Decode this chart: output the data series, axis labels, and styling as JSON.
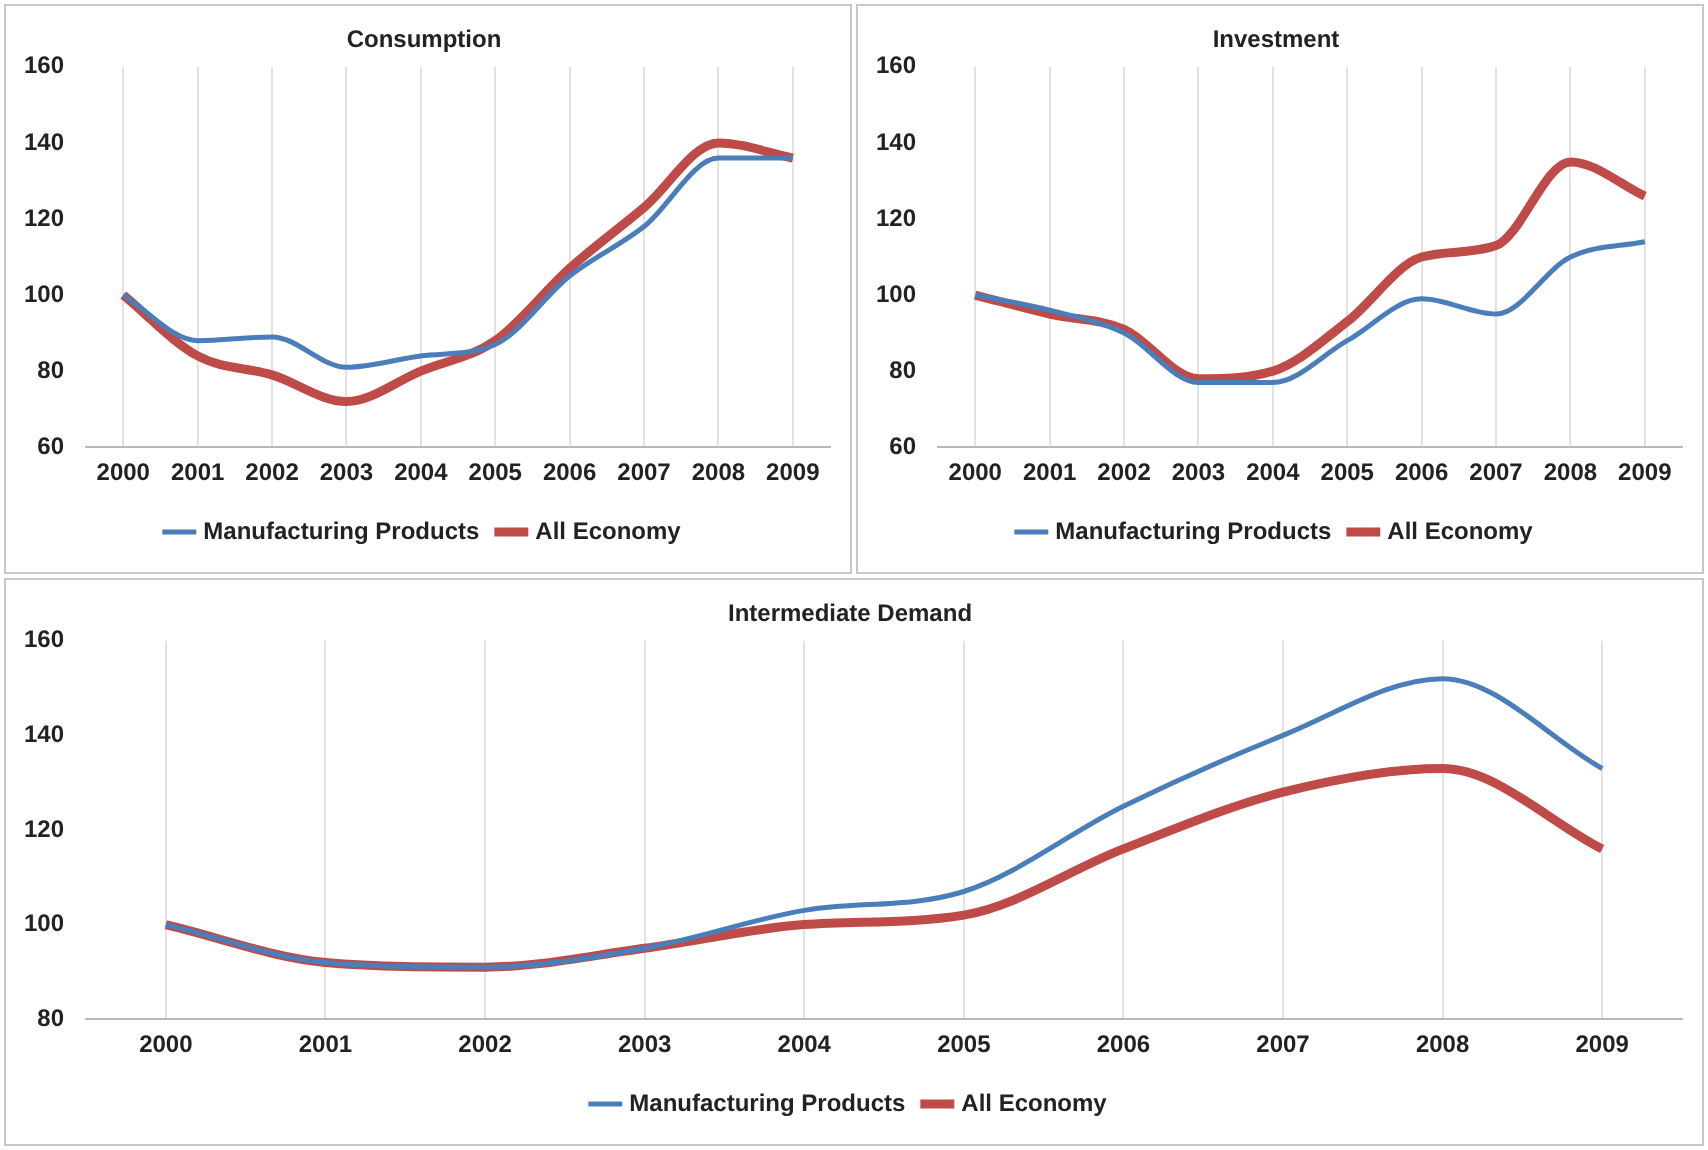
{
  "chart_data": [
    {
      "type": "line",
      "title": "Consumption",
      "categories": [
        "2000",
        "2001",
        "2002",
        "2003",
        "2004",
        "2005",
        "2006",
        "2007",
        "2008",
        "2009"
      ],
      "ylim": [
        60,
        160
      ],
      "yticks": [
        60,
        80,
        100,
        120,
        140,
        160
      ],
      "grid": "x",
      "legend": "bottom",
      "marker": "none",
      "series": [
        {
          "name": "Manufacturing Products",
          "color": "#4a7ebb",
          "values": [
            100,
            88,
            89,
            81,
            84,
            87,
            105,
            118,
            136,
            136
          ]
        },
        {
          "name": "All Economy",
          "color": "#be4b48",
          "values": [
            100,
            84,
            79,
            72,
            80,
            88,
            107,
            123,
            140,
            136
          ]
        }
      ]
    },
    {
      "type": "line",
      "title": "Investment",
      "categories": [
        "2000",
        "2001",
        "2002",
        "2003",
        "2004",
        "2005",
        "2006",
        "2007",
        "2008",
        "2009"
      ],
      "ylim": [
        60,
        160
      ],
      "yticks": [
        60,
        80,
        100,
        120,
        140,
        160
      ],
      "grid": "x",
      "legend": "bottom",
      "marker": "none",
      "series": [
        {
          "name": "Manufacturing Products",
          "color": "#4a7ebb",
          "values": [
            100,
            96,
            90,
            77,
            77,
            88,
            99,
            95,
            110,
            114
          ]
        },
        {
          "name": "All Economy",
          "color": "#be4b48",
          "values": [
            100,
            95,
            91,
            78,
            80,
            93,
            110,
            113,
            135,
            126
          ]
        }
      ]
    },
    {
      "type": "line",
      "title": "Intermediate Demand",
      "categories": [
        "2000",
        "2001",
        "2002",
        "2003",
        "2004",
        "2005",
        "2006",
        "2007",
        "2008",
        "2009"
      ],
      "ylim": [
        80,
        160
      ],
      "yticks": [
        80,
        100,
        120,
        140,
        160
      ],
      "grid": "x",
      "legend": "bottom",
      "marker": "none",
      "series": [
        {
          "name": "Manufacturing Products",
          "color": "#4a7ebb",
          "values": [
            100,
            92,
            91,
            95,
            103,
            107,
            125,
            140,
            152,
            133
          ]
        },
        {
          "name": "All Economy",
          "color": "#be4b48",
          "values": [
            100,
            92,
            91,
            95,
            100,
            102,
            116,
            128,
            133,
            116
          ]
        }
      ]
    }
  ]
}
